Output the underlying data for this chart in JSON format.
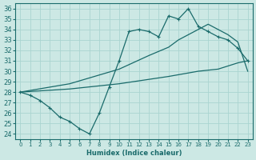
{
  "bg_color": "#cce8e4",
  "grid_color": "#aad4d0",
  "line_color": "#1a6b6b",
  "xlabel": "Humidex (Indice chaleur)",
  "xlim": [
    -0.5,
    23.5
  ],
  "ylim": [
    23.5,
    36.5
  ],
  "yticks": [
    24,
    25,
    26,
    27,
    28,
    29,
    30,
    31,
    32,
    33,
    34,
    35,
    36
  ],
  "xticks": [
    0,
    1,
    2,
    3,
    4,
    5,
    6,
    7,
    8,
    9,
    10,
    11,
    12,
    13,
    14,
    15,
    16,
    17,
    18,
    19,
    20,
    21,
    22,
    23
  ],
  "line1_x": [
    0,
    1,
    2,
    3,
    4,
    5,
    6,
    7,
    8,
    9,
    10,
    11,
    12,
    13,
    14,
    15,
    16,
    17,
    18,
    19,
    20,
    21,
    22,
    23
  ],
  "line1_y": [
    28.0,
    27.7,
    27.2,
    26.5,
    25.6,
    25.2,
    24.5,
    24.0,
    26.0,
    28.5,
    31.0,
    33.8,
    34.0,
    33.8,
    33.3,
    35.3,
    35.0,
    36.0,
    34.3,
    33.8,
    33.3,
    33.0,
    32.2,
    31.0
  ],
  "line2_x": [
    0,
    5,
    10,
    13,
    15,
    16,
    17,
    18,
    19,
    20,
    21,
    22,
    23
  ],
  "line2_y": [
    28.0,
    28.8,
    30.2,
    31.5,
    32.3,
    33.0,
    33.5,
    34.0,
    34.5,
    34.0,
    33.5,
    32.8,
    30.0
  ],
  "line3_x": [
    0,
    5,
    10,
    15,
    18,
    20,
    22,
    23
  ],
  "line3_y": [
    28.0,
    28.3,
    28.8,
    29.5,
    30.0,
    30.2,
    30.8,
    31.0
  ]
}
